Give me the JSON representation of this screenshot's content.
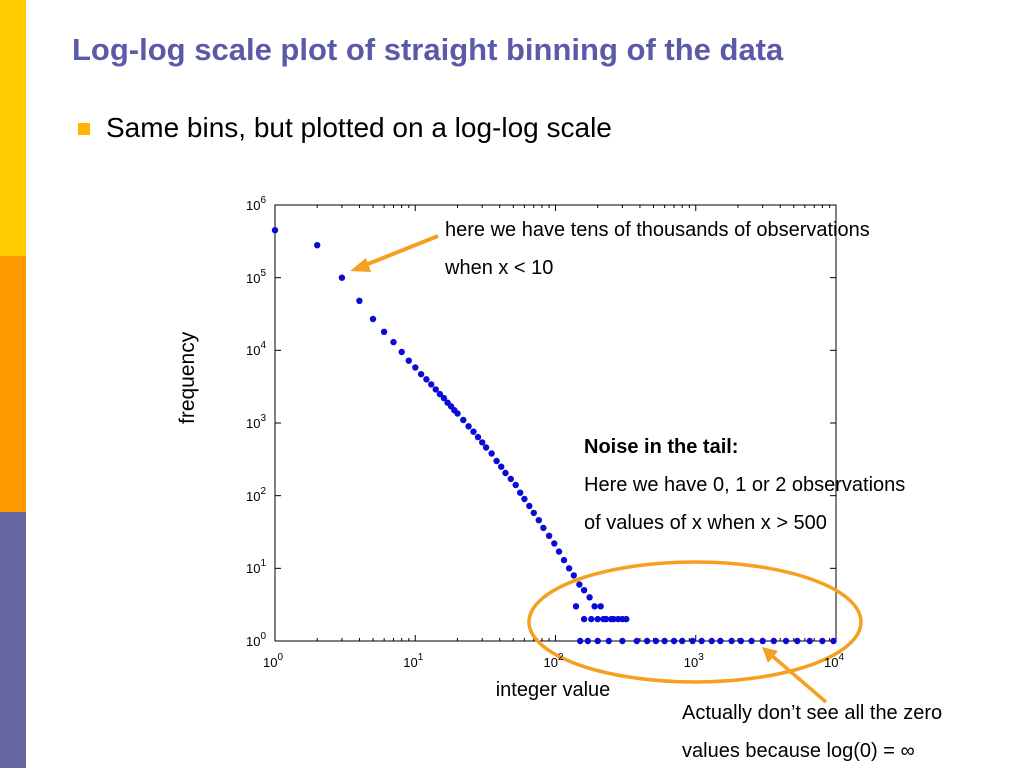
{
  "colors": {
    "title": "#5a5aa8",
    "sidebar_top": "#ffcc00",
    "sidebar_mid": "#ff9900",
    "sidebar_bottom": "#6666a0",
    "bullet": "#ffb400",
    "points": "#0b0bd8",
    "arrow": "#f5a020",
    "ellipse": "#f5a020"
  },
  "slide": {
    "title": "Log-log scale plot of straight binning of the data",
    "bullet": "Same bins, but plotted on a log-log scale"
  },
  "annotations": {
    "top_line1": "here we have tens of thousands of observations",
    "top_line2": "when x < 10",
    "noise_heading": "Noise in the tail:",
    "noise_line1": "Here we have 0, 1 or 2 observations",
    "noise_line2": "of values of x when x > 500",
    "bottom_line1": "Actually don’t see all the zero",
    "bottom_line2": "values because log(0) = ∞"
  },
  "chart_data": {
    "type": "scatter",
    "title": "",
    "xlabel": "integer value",
    "ylabel": "frequency",
    "x_scale": "log",
    "y_scale": "log",
    "xlim": [
      1,
      10000
    ],
    "ylim": [
      1,
      1000000
    ],
    "x_tick_labels": [
      {
        "base": "10",
        "exp": "0"
      },
      {
        "base": "10",
        "exp": "1"
      },
      {
        "base": "10",
        "exp": "2"
      },
      {
        "base": "10",
        "exp": "3"
      },
      {
        "base": "10",
        "exp": "4"
      }
    ],
    "y_tick_labels": [
      {
        "base": "10",
        "exp": "0"
      },
      {
        "base": "10",
        "exp": "1"
      },
      {
        "base": "10",
        "exp": "2"
      },
      {
        "base": "10",
        "exp": "3"
      },
      {
        "base": "10",
        "exp": "4"
      },
      {
        "base": "10",
        "exp": "5"
      },
      {
        "base": "10",
        "exp": "6"
      }
    ],
    "series": [
      {
        "name": "frequency",
        "points": [
          [
            1,
            450000
          ],
          [
            2,
            280000
          ],
          [
            3,
            100000
          ],
          [
            4,
            48000
          ],
          [
            5,
            27000
          ],
          [
            6,
            18000
          ],
          [
            7,
            13000
          ],
          [
            8,
            9500
          ],
          [
            9,
            7200
          ],
          [
            10,
            5800
          ],
          [
            11,
            4700
          ],
          [
            12,
            4000
          ],
          [
            13,
            3400
          ],
          [
            14,
            2900
          ],
          [
            15,
            2500
          ],
          [
            16,
            2200
          ],
          [
            17,
            1900
          ],
          [
            18,
            1700
          ],
          [
            19,
            1500
          ],
          [
            20,
            1350
          ],
          [
            22,
            1100
          ],
          [
            24,
            900
          ],
          [
            26,
            760
          ],
          [
            28,
            640
          ],
          [
            30,
            540
          ],
          [
            32,
            460
          ],
          [
            35,
            380
          ],
          [
            38,
            300
          ],
          [
            41,
            250
          ],
          [
            44,
            205
          ],
          [
            48,
            170
          ],
          [
            52,
            140
          ],
          [
            56,
            110
          ],
          [
            60,
            90
          ],
          [
            65,
            72
          ],
          [
            70,
            58
          ],
          [
            76,
            46
          ],
          [
            82,
            36
          ],
          [
            90,
            28
          ],
          [
            98,
            22
          ],
          [
            106,
            17
          ],
          [
            115,
            13
          ],
          [
            125,
            10
          ],
          [
            135,
            8
          ],
          [
            148,
            6
          ],
          [
            160,
            5
          ],
          [
            175,
            4
          ],
          [
            190,
            3
          ],
          [
            210,
            3
          ],
          [
            230,
            2
          ],
          [
            250,
            2
          ],
          [
            280,
            2
          ],
          [
            320,
            2
          ],
          [
            140,
            3
          ],
          [
            160,
            2
          ],
          [
            180,
            2
          ],
          [
            200,
            2
          ],
          [
            220,
            2
          ],
          [
            260,
            2
          ],
          [
            300,
            2
          ],
          [
            150,
            1
          ],
          [
            170,
            1
          ],
          [
            200,
            1
          ],
          [
            240,
            1
          ],
          [
            300,
            1
          ],
          [
            380,
            1
          ],
          [
            450,
            1
          ],
          [
            520,
            1
          ],
          [
            600,
            1
          ],
          [
            700,
            1
          ],
          [
            800,
            1
          ],
          [
            950,
            1
          ],
          [
            1100,
            1
          ],
          [
            1300,
            1
          ],
          [
            1500,
            1
          ],
          [
            1800,
            1
          ],
          [
            2100,
            1
          ],
          [
            2500,
            1
          ],
          [
            3000,
            1
          ],
          [
            3600,
            1
          ],
          [
            4400,
            1
          ],
          [
            5300,
            1
          ],
          [
            6500,
            1
          ],
          [
            8000,
            1
          ],
          [
            9600,
            1
          ]
        ]
      }
    ]
  }
}
